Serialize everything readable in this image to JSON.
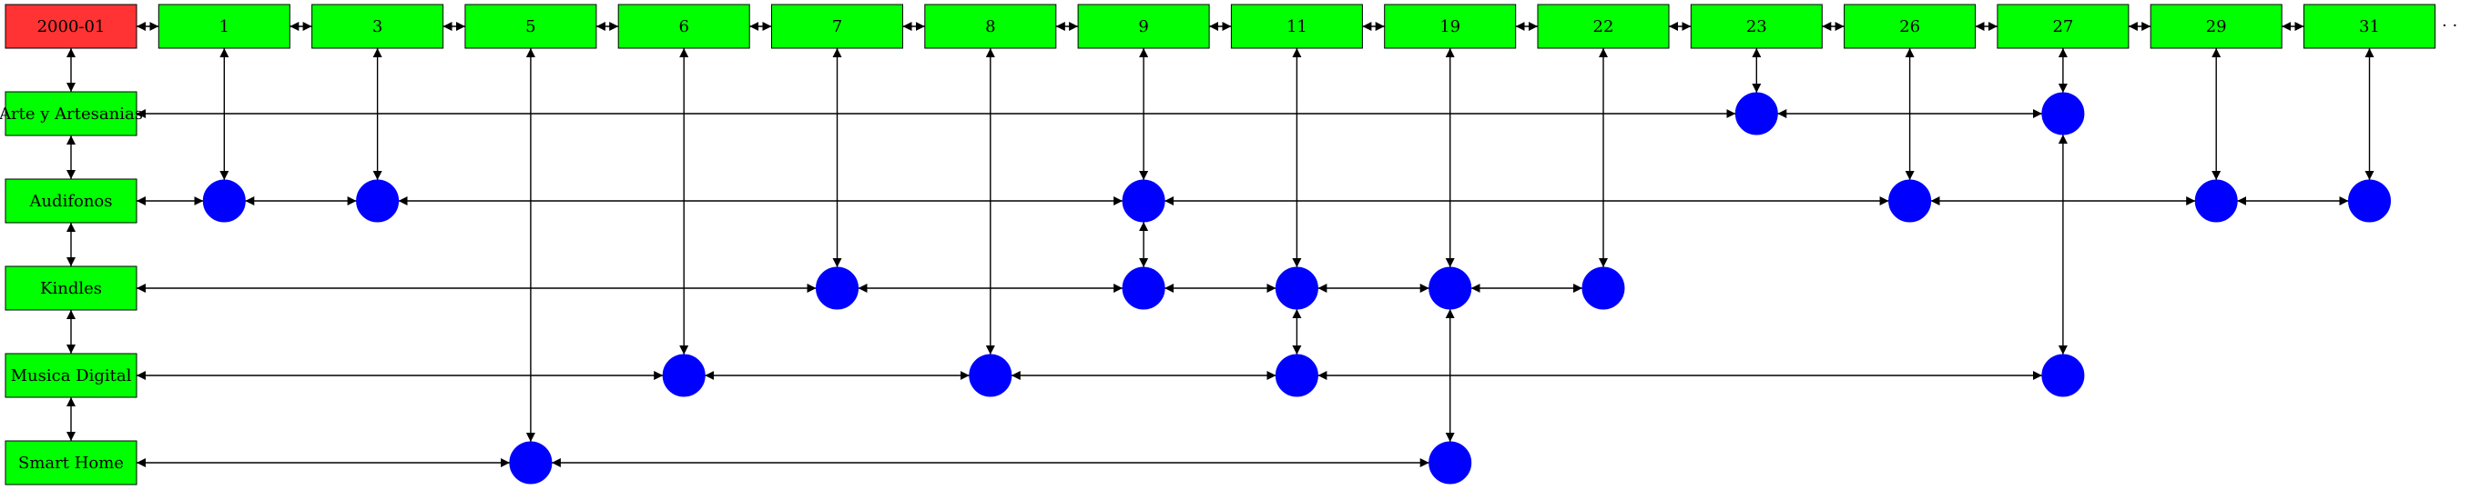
{
  "header": {
    "label": "2000-01",
    "color": "#ff3333"
  },
  "days": [
    "1",
    "3",
    "5",
    "6",
    "7",
    "8",
    "9",
    "11",
    "19",
    "22",
    "23",
    "26",
    "27",
    "29",
    "31"
  ],
  "categories": [
    "Arte y Artesanias",
    "Audifonos",
    "Kindles",
    "Musica Digital",
    "Smart Home"
  ],
  "continuation": "· ·",
  "colors": {
    "box": "#00ff00",
    "dot": "#0000ff",
    "header": "#ff3333"
  },
  "rows": [
    {
      "category": "Arte y Artesanias",
      "days": [
        "23",
        "27"
      ]
    },
    {
      "category": "Audifonos",
      "days": [
        "1",
        "3",
        "9",
        "26",
        "29",
        "31"
      ]
    },
    {
      "category": "Kindles",
      "days": [
        "7",
        "9",
        "11",
        "19",
        "22"
      ]
    },
    {
      "category": "Musica Digital",
      "days": [
        "6",
        "8",
        "11",
        "27"
      ]
    },
    {
      "category": "Smart Home",
      "days": [
        "5",
        "19"
      ]
    }
  ]
}
